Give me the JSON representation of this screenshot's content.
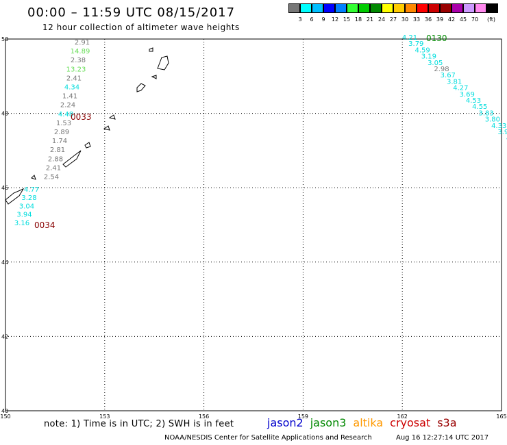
{
  "header": {
    "title": "00:00 – 11:59 UTC 08/15/2017",
    "subtitle": "12 hour collection of altimeter wave heights"
  },
  "legend": {
    "unit": "(ft)",
    "swatches": [
      {
        "color": "#777777",
        "label": ""
      },
      {
        "color": "#00ffff",
        "label": "3"
      },
      {
        "color": "#00bfff",
        "label": "6"
      },
      {
        "color": "#0000ff",
        "label": "9"
      },
      {
        "color": "#0080ff",
        "label": "12"
      },
      {
        "color": "#33ff33",
        "label": "15"
      },
      {
        "color": "#00cc00",
        "label": "18"
      },
      {
        "color": "#008800",
        "label": "21"
      },
      {
        "color": "#ffff00",
        "label": "24"
      },
      {
        "color": "#ffcc00",
        "label": "27"
      },
      {
        "color": "#ff8800",
        "label": "30"
      },
      {
        "color": "#ff0000",
        "label": "33"
      },
      {
        "color": "#cc0000",
        "label": "36"
      },
      {
        "color": "#990000",
        "label": "39"
      },
      {
        "color": "#aa00aa",
        "label": "42"
      },
      {
        "color": "#cc99ff",
        "label": "45"
      },
      {
        "color": "#ff88ee",
        "label": "70"
      },
      {
        "color": "#000000",
        "label": ""
      }
    ]
  },
  "map": {
    "lon_ticks": [
      "150",
      "153",
      "156",
      "159",
      "162",
      "165"
    ],
    "lat_ticks": [
      "50",
      "48",
      "46",
      "44",
      "42",
      "40"
    ],
    "passes": [
      {
        "time_label": "0033",
        "time_color": "#880000",
        "points": [
          {
            "v": "2.91",
            "c": "#777777"
          },
          {
            "v": "14.89",
            "c": "#66dd55"
          },
          {
            "v": "2.38",
            "c": "#777777"
          },
          {
            "v": "13.23",
            "c": "#66dd55"
          },
          {
            "v": "2.41",
            "c": "#777777"
          },
          {
            "v": "4.34",
            "c": "#00dddd"
          },
          {
            "v": "1.41",
            "c": "#777777"
          },
          {
            "v": "2.24",
            "c": "#777777"
          },
          {
            "v": "4.48",
            "c": "#00dddd"
          },
          {
            "v": "1.53",
            "c": "#777777"
          },
          {
            "v": "2.89",
            "c": "#777777"
          },
          {
            "v": "1.74",
            "c": "#777777"
          },
          {
            "v": "2.81",
            "c": "#777777"
          },
          {
            "v": "2.88",
            "c": "#777777"
          },
          {
            "v": "2.41",
            "c": "#777777"
          },
          {
            "v": "2.54",
            "c": "#777777"
          }
        ]
      },
      {
        "time_label": "0034",
        "time_color": "#880000",
        "points": [
          {
            "v": "4.77",
            "c": "#00dddd"
          },
          {
            "v": "3.28",
            "c": "#00dddd"
          },
          {
            "v": "3.04",
            "c": "#00dddd"
          },
          {
            "v": "3.94",
            "c": "#00dddd"
          },
          {
            "v": "3.16",
            "c": "#00dddd"
          }
        ]
      },
      {
        "time_label": "0130",
        "time_color": "#008800",
        "points": [
          {
            "v": "4.21",
            "c": "#00dddd"
          },
          {
            "v": "3.79",
            "c": "#00dddd"
          },
          {
            "v": "4.59",
            "c": "#00dddd"
          },
          {
            "v": "3.19",
            "c": "#00dddd"
          },
          {
            "v": "3.05",
            "c": "#00dddd"
          },
          {
            "v": "2.98",
            "c": "#777777"
          },
          {
            "v": "3.67",
            "c": "#00dddd"
          },
          {
            "v": "3.81",
            "c": "#00dddd"
          },
          {
            "v": "4.27",
            "c": "#00dddd"
          },
          {
            "v": "3.69",
            "c": "#00dddd"
          },
          {
            "v": "4.53",
            "c": "#00dddd"
          },
          {
            "v": "4.55",
            "c": "#00dddd"
          },
          {
            "v": "3.83",
            "c": "#00dddd"
          },
          {
            "v": "3.80",
            "c": "#00dddd"
          },
          {
            "v": "4.33",
            "c": "#00dddd"
          },
          {
            "v": "3.92",
            "c": "#00dddd"
          },
          {
            "v": "4.1",
            "c": "#00dddd"
          }
        ]
      }
    ]
  },
  "footer": {
    "note": "note: 1) Time is in UTC; 2) SWH is in feet",
    "satellites": [
      {
        "name": "jason2",
        "color": "#0000cc"
      },
      {
        "name": "jason3",
        "color": "#008800"
      },
      {
        "name": "altika",
        "color": "#ff9900"
      },
      {
        "name": "cryosat",
        "color": "#cc0000"
      },
      {
        "name": "s3a",
        "color": "#990000"
      }
    ],
    "credit": "NOAA/NESDIS Center for Satellite Applications and Research",
    "generated": "Aug 16 12:27:14 UTC 2017"
  }
}
